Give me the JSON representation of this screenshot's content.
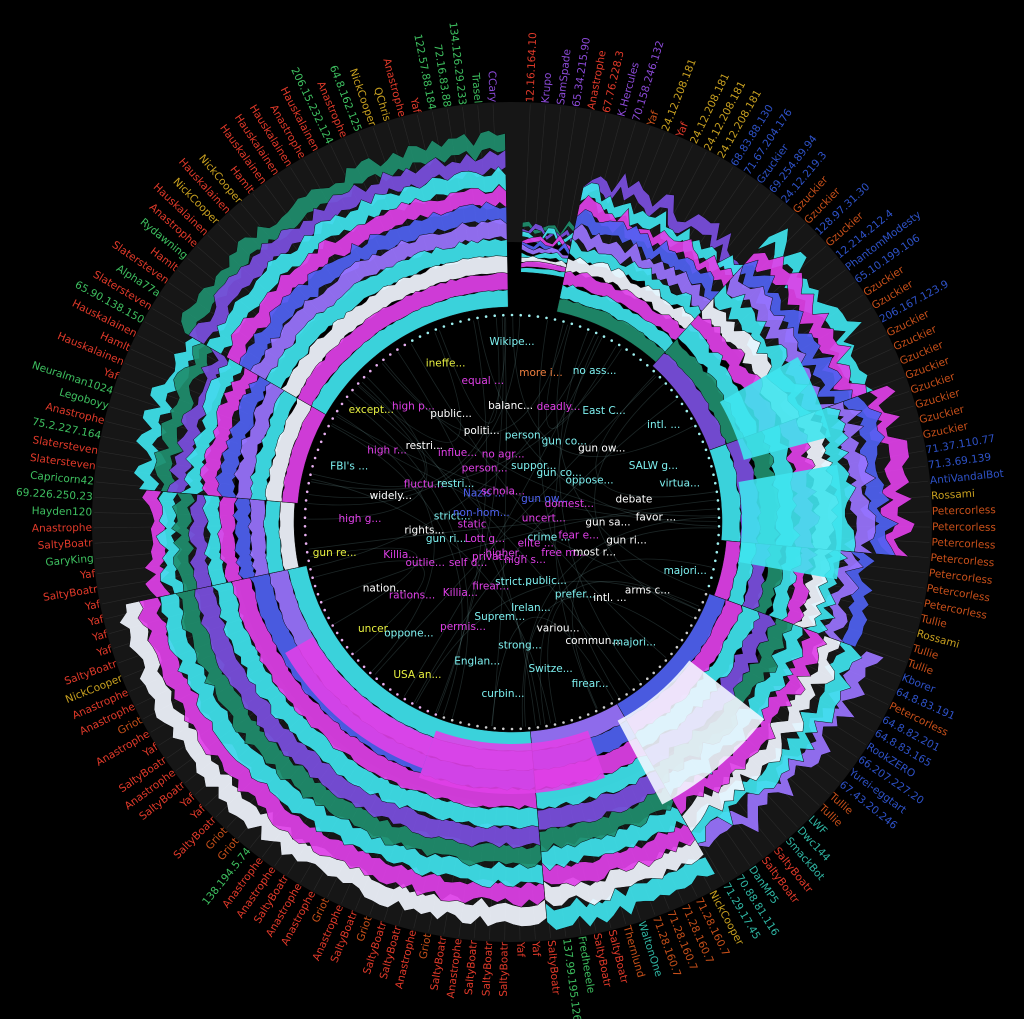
{
  "colors": {
    "background": "#000000",
    "ring_track": "#161616",
    "revision_cyan": "#3fe4ee",
    "revision_magenta": "#e040e8",
    "revision_blue": "#4f62f2",
    "revision_white": "#f2f6ff",
    "revision_teal": "#1f8e6e",
    "editor_orange": "#c8501a",
    "editor_red": "#e23a2a",
    "editor_green": "#3ec060",
    "editor_blue": "#2e52c8",
    "editor_teal": "#2fb6a4",
    "editor_yellow": "#c8a020"
  },
  "editors": [
    {
      "name": "12.16.164.10",
      "color": "#e23a2a"
    },
    {
      "name": "Krupo",
      "color": "#8c4ad8"
    },
    {
      "name": "SamSpade",
      "color": "#8c4ad8"
    },
    {
      "name": "65.34.215.90",
      "color": "#8c4ad8"
    },
    {
      "name": "Anastrophe",
      "color": "#e23a2a"
    },
    {
      "name": "67.76.228.3",
      "color": "#e23a2a"
    },
    {
      "name": "K.Hercules",
      "color": "#8c4ad8"
    },
    {
      "name": "70.158.246.132",
      "color": "#8c4ad8"
    },
    {
      "name": "Yaf",
      "color": "#c8501a"
    },
    {
      "name": "24.12.208.181",
      "color": "#c8a020"
    },
    {
      "name": "Yaf",
      "color": "#e23a2a"
    },
    {
      "name": "24.12.208.181",
      "color": "#c8a020"
    },
    {
      "name": "24.12.208.181",
      "color": "#c8a020"
    },
    {
      "name": "24.12.208.181",
      "color": "#c8a020"
    },
    {
      "name": "68.83.88.130",
      "color": "#2e52c8"
    },
    {
      "name": "71.67.204.176",
      "color": "#2e52c8"
    },
    {
      "name": "Gzuckier",
      "color": "#2e52c8"
    },
    {
      "name": "69.254.89.94",
      "color": "#2e52c8"
    },
    {
      "name": "24.12.219.3",
      "color": "#2e52c8"
    },
    {
      "name": "Gzuckier",
      "color": "#c8501a"
    },
    {
      "name": "Gzuckier",
      "color": "#c8501a"
    },
    {
      "name": "128.97.31.30",
      "color": "#2e52c8"
    },
    {
      "name": "Gzuckier",
      "color": "#c8501a"
    },
    {
      "name": "12.214.212.4",
      "color": "#2e52c8"
    },
    {
      "name": "PhantomModesty",
      "color": "#2e52c8"
    },
    {
      "name": "65.10.199.106",
      "color": "#2e52c8"
    },
    {
      "name": "Gzuckier",
      "color": "#c8501a"
    },
    {
      "name": "Gzuckier",
      "color": "#c8501a"
    },
    {
      "name": "206.167.123.9",
      "color": "#2e52c8"
    },
    {
      "name": "Gzuckier",
      "color": "#c8501a"
    },
    {
      "name": "Gzuckier",
      "color": "#c8501a"
    },
    {
      "name": "Gzuckier",
      "color": "#c8501a"
    },
    {
      "name": "Gzuckier",
      "color": "#c8501a"
    },
    {
      "name": "Gzuckier",
      "color": "#c8501a"
    },
    {
      "name": "Gzuckier",
      "color": "#c8501a"
    },
    {
      "name": "Gzuckier",
      "color": "#c8501a"
    },
    {
      "name": "Gzuckier",
      "color": "#c8501a"
    },
    {
      "name": "71.37.110.77",
      "color": "#2e52c8"
    },
    {
      "name": "71.3.69.139",
      "color": "#2e52c8"
    },
    {
      "name": "AntiVandalBot",
      "color": "#2e52c8"
    },
    {
      "name": "Rossami",
      "color": "#c8a020"
    },
    {
      "name": "Petercorless",
      "color": "#c8501a"
    },
    {
      "name": "Petercorless",
      "color": "#c8501a"
    },
    {
      "name": "Petercorless",
      "color": "#c8501a"
    },
    {
      "name": "Petercorless",
      "color": "#c8501a"
    },
    {
      "name": "Petercorless",
      "color": "#c8501a"
    },
    {
      "name": "Petercorless",
      "color": "#c8501a"
    },
    {
      "name": "Petercorless",
      "color": "#c8501a"
    },
    {
      "name": "Tullie",
      "color": "#c8501a"
    },
    {
      "name": "Rossami",
      "color": "#c8a020"
    },
    {
      "name": "Tullie",
      "color": "#c8501a"
    },
    {
      "name": "Tullie",
      "color": "#c8501a"
    },
    {
      "name": "Kborer",
      "color": "#2e52c8"
    },
    {
      "name": "64.8.83.191",
      "color": "#2e52c8"
    },
    {
      "name": "Petercorless",
      "color": "#c8501a"
    },
    {
      "name": "64.8.82.201",
      "color": "#2e52c8"
    },
    {
      "name": "64.8.83.165",
      "color": "#2e52c8"
    },
    {
      "name": "RookZERO",
      "color": "#2e52c8"
    },
    {
      "name": "66.207.227.20",
      "color": "#2e52c8"
    },
    {
      "name": "Yurei-eggtart",
      "color": "#2e52c8"
    },
    {
      "name": "67.43.20.246",
      "color": "#2e52c8"
    },
    {
      "name": "Tullie",
      "color": "#c8501a"
    },
    {
      "name": "Tullie",
      "color": "#c8501a"
    },
    {
      "name": "LWF",
      "color": "#2fb6a4"
    },
    {
      "name": "Dwc144",
      "color": "#2fb6a4"
    },
    {
      "name": "SmackBot",
      "color": "#2fb6a4"
    },
    {
      "name": "SaltyBoatr",
      "color": "#e23a2a"
    },
    {
      "name": "SaltyBoatr",
      "color": "#e23a2a"
    },
    {
      "name": "DanMP5",
      "color": "#2fb6a4"
    },
    {
      "name": "70.88.81.116",
      "color": "#2fb6a4"
    },
    {
      "name": "71.29.17.45",
      "color": "#2fb6a4"
    },
    {
      "name": "NickCooper",
      "color": "#c8a020"
    },
    {
      "name": "71.28.160.7",
      "color": "#c8501a"
    },
    {
      "name": "71.28.160.7",
      "color": "#c8501a"
    },
    {
      "name": "71.28.160.7",
      "color": "#c8501a"
    },
    {
      "name": "71.28.160.7",
      "color": "#c8501a"
    },
    {
      "name": "WaltonOne",
      "color": "#2fb6a4"
    },
    {
      "name": "Thernlund",
      "color": "#c8501a"
    },
    {
      "name": "SaltyBoatr",
      "color": "#e23a2a"
    },
    {
      "name": "SaltyBoatr",
      "color": "#e23a2a"
    },
    {
      "name": "Fredheeele",
      "color": "#3ec060"
    },
    {
      "name": "137.99.195.126",
      "color": "#3ec060"
    },
    {
      "name": "SaltyBoatr",
      "color": "#e23a2a"
    },
    {
      "name": "Yaf",
      "color": "#e23a2a"
    },
    {
      "name": "Yaf",
      "color": "#e23a2a"
    },
    {
      "name": "SaltyBoatr",
      "color": "#e23a2a"
    },
    {
      "name": "SaltyBoatr",
      "color": "#e23a2a"
    },
    {
      "name": "SaltyBoatr",
      "color": "#e23a2a"
    },
    {
      "name": "Anastrophe",
      "color": "#e23a2a"
    },
    {
      "name": "SaltyBoatr",
      "color": "#e23a2a"
    },
    {
      "name": "Griot",
      "color": "#c8501a"
    },
    {
      "name": "Anastrophe",
      "color": "#e23a2a"
    },
    {
      "name": "SaltyBoatr",
      "color": "#e23a2a"
    },
    {
      "name": "SaltyBoatr",
      "color": "#e23a2a"
    },
    {
      "name": "Griot",
      "color": "#c8501a"
    },
    {
      "name": "SaltyBoatr",
      "color": "#e23a2a"
    },
    {
      "name": "Anastrophe",
      "color": "#e23a2a"
    },
    {
      "name": "Griot",
      "color": "#c8501a"
    },
    {
      "name": "Anastrophe",
      "color": "#e23a2a"
    },
    {
      "name": "Anastrophe",
      "color": "#e23a2a"
    },
    {
      "name": "SaltyBoatr",
      "color": "#e23a2a"
    },
    {
      "name": "Anastrophe",
      "color": "#e23a2a"
    },
    {
      "name": "Anastrophe",
      "color": "#e23a2a"
    },
    {
      "name": "138.194.5.74",
      "color": "#3ec060"
    },
    {
      "name": "Griot",
      "color": "#c8501a"
    },
    {
      "name": "Griot",
      "color": "#c8501a"
    },
    {
      "name": "SaltyBoatr",
      "color": "#e23a2a"
    },
    {
      "name": "Yaf",
      "color": "#e23a2a"
    },
    {
      "name": "Yaf",
      "color": "#e23a2a"
    },
    {
      "name": "SaltyBoatr",
      "color": "#e23a2a"
    },
    {
      "name": "Anastrophe",
      "color": "#e23a2a"
    },
    {
      "name": "SaltyBoatr",
      "color": "#e23a2a"
    },
    {
      "name": "Yaf",
      "color": "#e23a2a"
    },
    {
      "name": "Anastrophe",
      "color": "#e23a2a"
    },
    {
      "name": "Griot",
      "color": "#c8501a"
    },
    {
      "name": "Anastrophe",
      "color": "#e23a2a"
    },
    {
      "name": "Anastrophe",
      "color": "#e23a2a"
    },
    {
      "name": "NickCooper",
      "color": "#c8a020"
    },
    {
      "name": "SaltyBoatr",
      "color": "#e23a2a"
    },
    {
      "name": "Yaf",
      "color": "#e23a2a"
    },
    {
      "name": "Yaf",
      "color": "#e23a2a"
    },
    {
      "name": "Yaf",
      "color": "#e23a2a"
    },
    {
      "name": "Yaf",
      "color": "#e23a2a"
    },
    {
      "name": "SaltyBoatr",
      "color": "#e23a2a"
    },
    {
      "name": "Yaf",
      "color": "#e23a2a"
    },
    {
      "name": "GaryKing",
      "color": "#3ec060"
    },
    {
      "name": "SaltyBoatr",
      "color": "#e23a2a"
    },
    {
      "name": "Anastrophe",
      "color": "#e23a2a"
    },
    {
      "name": "Hayden120",
      "color": "#3ec060"
    },
    {
      "name": "69.226.250.23",
      "color": "#3ec060"
    },
    {
      "name": "Capricorn42",
      "color": "#3ec060"
    },
    {
      "name": "Slatersteven",
      "color": "#e23a2a"
    },
    {
      "name": "Slatersteven",
      "color": "#e23a2a"
    },
    {
      "name": "75.2.227.164",
      "color": "#3ec060"
    },
    {
      "name": "Anastrophe",
      "color": "#e23a2a"
    },
    {
      "name": "Legoboyy",
      "color": "#3ec060"
    },
    {
      "name": "Neuralman1024",
      "color": "#3ec060"
    },
    {
      "name": "Yaf",
      "color": "#e23a2a"
    },
    {
      "name": "Hauskalainen",
      "color": "#e23a2a"
    },
    {
      "name": "Hamlt",
      "color": "#e23a2a"
    },
    {
      "name": "Hauskalainen",
      "color": "#e23a2a"
    },
    {
      "name": "65.90.138.150",
      "color": "#3ec060"
    },
    {
      "name": "Slatersteven",
      "color": "#e23a2a"
    },
    {
      "name": "Alpha77a",
      "color": "#3ec060"
    },
    {
      "name": "Slatersteven",
      "color": "#e23a2a"
    },
    {
      "name": "Hamlt",
      "color": "#e23a2a"
    },
    {
      "name": "Rydawning",
      "color": "#3ec060"
    },
    {
      "name": "Anastrophe",
      "color": "#e23a2a"
    },
    {
      "name": "Hauskalainen",
      "color": "#e23a2a"
    },
    {
      "name": "NickCooper",
      "color": "#c8a020"
    },
    {
      "name": "Hauskalainen",
      "color": "#e23a2a"
    },
    {
      "name": "NickCooper",
      "color": "#c8a020"
    },
    {
      "name": "Hamlt",
      "color": "#e23a2a"
    },
    {
      "name": "Hauskalainen",
      "color": "#e23a2a"
    },
    {
      "name": "Hauskalainen",
      "color": "#e23a2a"
    },
    {
      "name": "Hauskalainen",
      "color": "#e23a2a"
    },
    {
      "name": "Anastrophe",
      "color": "#e23a2a"
    },
    {
      "name": "Hauskalainen",
      "color": "#e23a2a"
    },
    {
      "name": "206.15.232.124",
      "color": "#3ec060"
    },
    {
      "name": "Anastrophe",
      "color": "#e23a2a"
    },
    {
      "name": "64.8.162.125",
      "color": "#3ec060"
    },
    {
      "name": "NickCooper",
      "color": "#c8a020"
    },
    {
      "name": "QChris",
      "color": "#c8a020"
    },
    {
      "name": "Anastrophe",
      "color": "#e23a2a"
    },
    {
      "name": "Yaf",
      "color": "#e23a2a"
    },
    {
      "name": "122.57.88.184",
      "color": "#3ec060"
    },
    {
      "name": "72.16.83.88",
      "color": "#3ec060"
    },
    {
      "name": "134.126.29.233",
      "color": "#3ec060"
    },
    {
      "name": "Trasel",
      "color": "#3ec060"
    },
    {
      "name": "CCary",
      "color": "#8c4ad8"
    }
  ],
  "topics": [
    {
      "label": "Wikipe...",
      "color": "#7ef0f0"
    },
    {
      "label": "no ass...",
      "color": "#7ef0f0"
    },
    {
      "label": "intl. ...",
      "color": "#7ef0f0"
    },
    {
      "label": "virtua...",
      "color": "#7ef0f0"
    },
    {
      "label": "majori...",
      "color": "#7ef0f0"
    },
    {
      "label": "majori...",
      "color": "#7ef0f0"
    },
    {
      "label": "firear...",
      "color": "#7ef0f0"
    },
    {
      "label": "curbin...",
      "color": "#7ef0f0"
    },
    {
      "label": "USA an...",
      "color": "#e8f040"
    },
    {
      "label": "uncer...",
      "color": "#e8f040"
    },
    {
      "label": "gun re...",
      "color": "#e8f040"
    },
    {
      "label": "FBI's ...",
      "color": "#7ef0f0"
    },
    {
      "label": "except...",
      "color": "#e8f040"
    },
    {
      "label": "ineffe...",
      "color": "#e8f040"
    },
    {
      "label": "more i...",
      "color": "#f08040"
    },
    {
      "label": "East C...",
      "color": "#7ef0f0"
    },
    {
      "label": "SALW g...",
      "color": "#7ef0f0"
    },
    {
      "label": "favor ...",
      "color": "#ffffff"
    },
    {
      "label": "arms c...",
      "color": "#ffffff"
    },
    {
      "label": "commun...",
      "color": "#ffffff"
    },
    {
      "label": "Switze...",
      "color": "#7ef0f0"
    },
    {
      "label": "Englan...",
      "color": "#7ef0f0"
    },
    {
      "label": "oppone...",
      "color": "#7ef0f0"
    },
    {
      "label": "nation...",
      "color": "#ffffff"
    },
    {
      "label": "high g...",
      "color": "#e040e8"
    },
    {
      "label": "high r...",
      "color": "#e040e8"
    },
    {
      "label": "high p...",
      "color": "#e040e8"
    },
    {
      "label": "equal ...",
      "color": "#e040e8"
    },
    {
      "label": "deadly...",
      "color": "#e040e8"
    },
    {
      "label": "gun ow...",
      "color": "#ffffff"
    },
    {
      "label": "debate",
      "color": "#ffffff"
    },
    {
      "label": "gun ri...",
      "color": "#ffffff"
    },
    {
      "label": "intl. ...",
      "color": "#ffffff"
    },
    {
      "label": "variou...",
      "color": "#ffffff"
    },
    {
      "label": "strong...",
      "color": "#7ef0f0"
    },
    {
      "label": "permis...",
      "color": "#e040e8"
    },
    {
      "label": "rations...",
      "color": "#e040e8"
    },
    {
      "label": "Killia...",
      "color": "#e040e8"
    },
    {
      "label": "widely...",
      "color": "#ffffff"
    },
    {
      "label": "restri...",
      "color": "#ffffff"
    },
    {
      "label": "public...",
      "color": "#ffffff"
    },
    {
      "label": "balanc...",
      "color": "#ffffff"
    },
    {
      "label": "gun co...",
      "color": "#7ef0f0"
    },
    {
      "label": "oppose...",
      "color": "#7ef0f0"
    },
    {
      "label": "gun sa...",
      "color": "#ffffff"
    },
    {
      "label": "most r...",
      "color": "#ffffff"
    },
    {
      "label": "prefer...",
      "color": "#7ef0f0"
    },
    {
      "label": "Irelan...",
      "color": "#7ef0f0"
    },
    {
      "label": "Suprem...",
      "color": "#7ef0f0"
    },
    {
      "label": "Killia...",
      "color": "#e040e8"
    },
    {
      "label": "outlie...",
      "color": "#e040e8"
    },
    {
      "label": "rights...",
      "color": "#ffffff"
    },
    {
      "label": "fluctu...",
      "color": "#e040e8"
    },
    {
      "label": "influe...",
      "color": "#e040e8"
    },
    {
      "label": "politi...",
      "color": "#ffffff"
    },
    {
      "label": "person...",
      "color": "#7ef0f0"
    },
    {
      "label": "gun co...",
      "color": "#7ef0f0"
    },
    {
      "label": "domest...",
      "color": "#e040e8"
    },
    {
      "label": "fear e...",
      "color": "#e040e8"
    },
    {
      "label": "free m...",
      "color": "#e040e8"
    },
    {
      "label": "public...",
      "color": "#7ef0f0"
    },
    {
      "label": "strict...",
      "color": "#7ef0f0"
    },
    {
      "label": "firear...",
      "color": "#e040e8"
    },
    {
      "label": "self d...",
      "color": "#e040e8"
    },
    {
      "label": "gun ri...",
      "color": "#7ef0f0"
    },
    {
      "label": "strict...",
      "color": "#7ef0f0"
    },
    {
      "label": "restri...",
      "color": "#7ef0f0"
    },
    {
      "label": "person...",
      "color": "#e040e8"
    },
    {
      "label": "no agr...",
      "color": "#e040e8"
    },
    {
      "label": "suppor...",
      "color": "#7ef0f0"
    },
    {
      "label": "gun ow...",
      "color": "#4f62f2"
    },
    {
      "label": "uncert...",
      "color": "#e040e8"
    },
    {
      "label": "crime ...",
      "color": "#7ef0f0"
    },
    {
      "label": "elite ...",
      "color": "#e040e8"
    },
    {
      "label": "high s...",
      "color": "#e040e8"
    },
    {
      "label": "higher...",
      "color": "#e040e8"
    },
    {
      "label": "privat...",
      "color": "#e040e8"
    },
    {
      "label": "Lott g...",
      "color": "#e040e8"
    },
    {
      "label": "static",
      "color": "#e040e8"
    },
    {
      "label": "non-hom...",
      "color": "#4f62f2"
    },
    {
      "label": "Nazis ...",
      "color": "#4f62f2"
    },
    {
      "label": "schola...",
      "color": "#e040e8"
    }
  ]
}
